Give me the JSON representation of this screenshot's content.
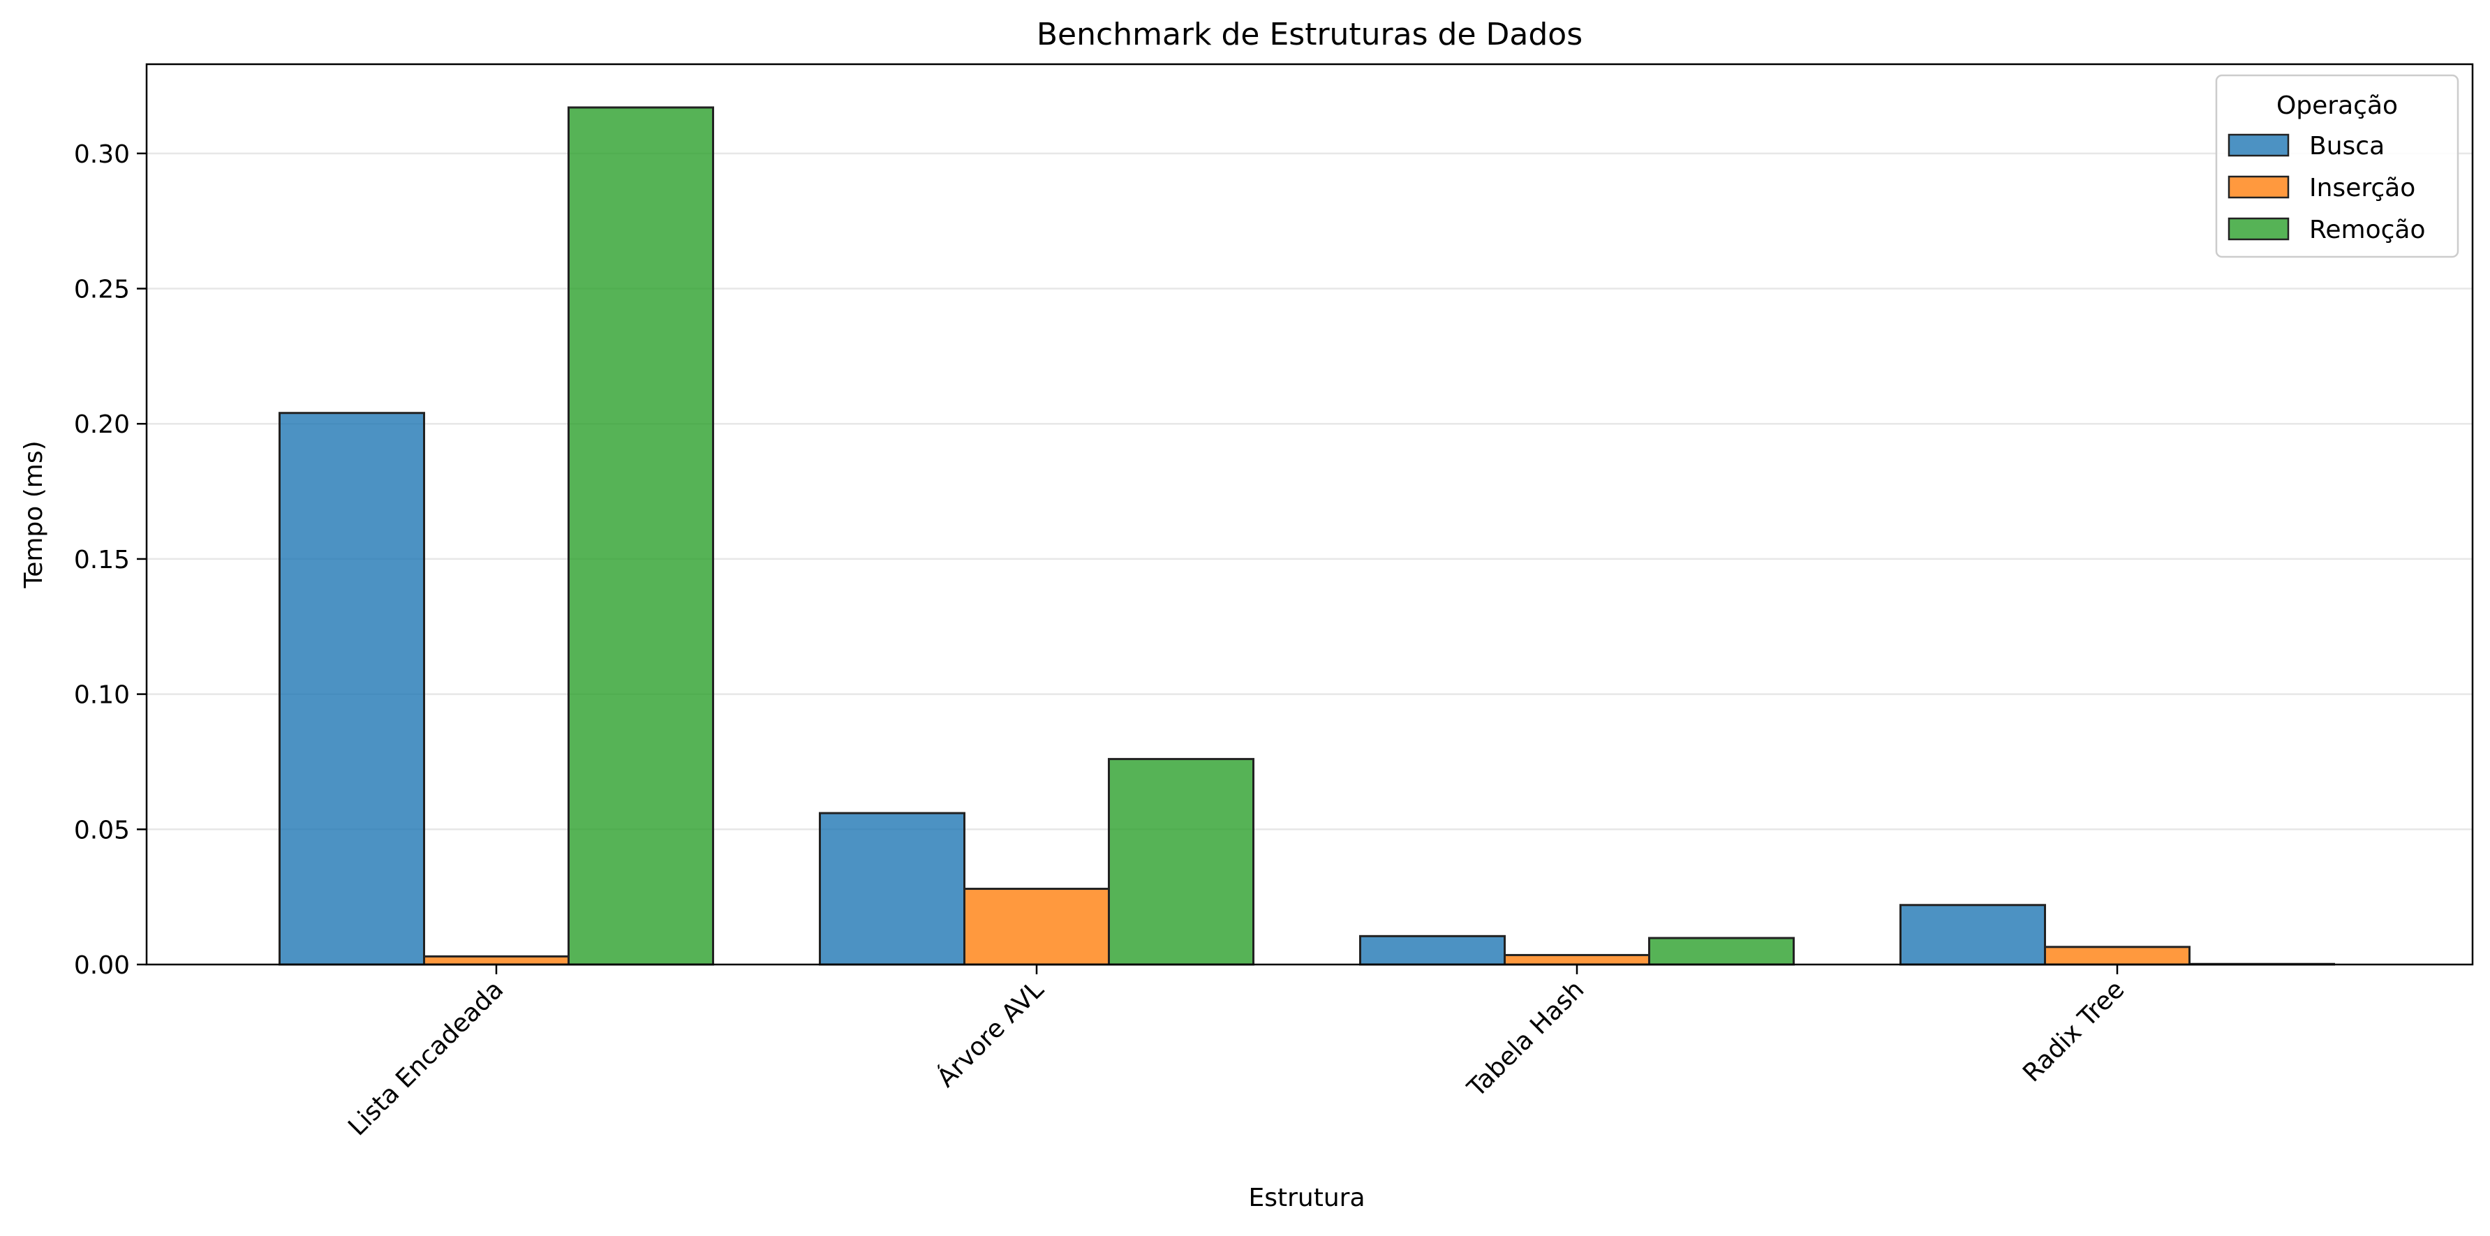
{
  "chart_data": {
    "type": "bar",
    "title": "Benchmark de Estruturas de Dados",
    "xlabel": "Estrutura",
    "ylabel": "Tempo (ms)",
    "categories": [
      "Lista Encadeada",
      "Árvore AVL",
      "Tabela Hash",
      "Radix Tree"
    ],
    "series": [
      {
        "name": "Busca",
        "color": "#1f77b4",
        "values": [
          0.204,
          0.056,
          0.0105,
          0.022
        ]
      },
      {
        "name": "Inserção",
        "color": "#ff7f0e",
        "values": [
          0.003,
          0.028,
          0.0035,
          0.0065
        ]
      },
      {
        "name": "Remoção",
        "color": "#2ca02c",
        "values": [
          0.317,
          0.076,
          0.0098,
          0.0002
        ]
      }
    ],
    "ylim": [
      0,
      0.333
    ],
    "yticks": [
      0.0,
      0.05,
      0.1,
      0.15,
      0.2,
      0.25,
      0.3
    ],
    "ytick_labels": [
      "0.00",
      "0.05",
      "0.10",
      "0.15",
      "0.20",
      "0.25",
      "0.30"
    ],
    "legend": {
      "title": "Operação",
      "placement": "top-right"
    },
    "grid": "y-major"
  }
}
